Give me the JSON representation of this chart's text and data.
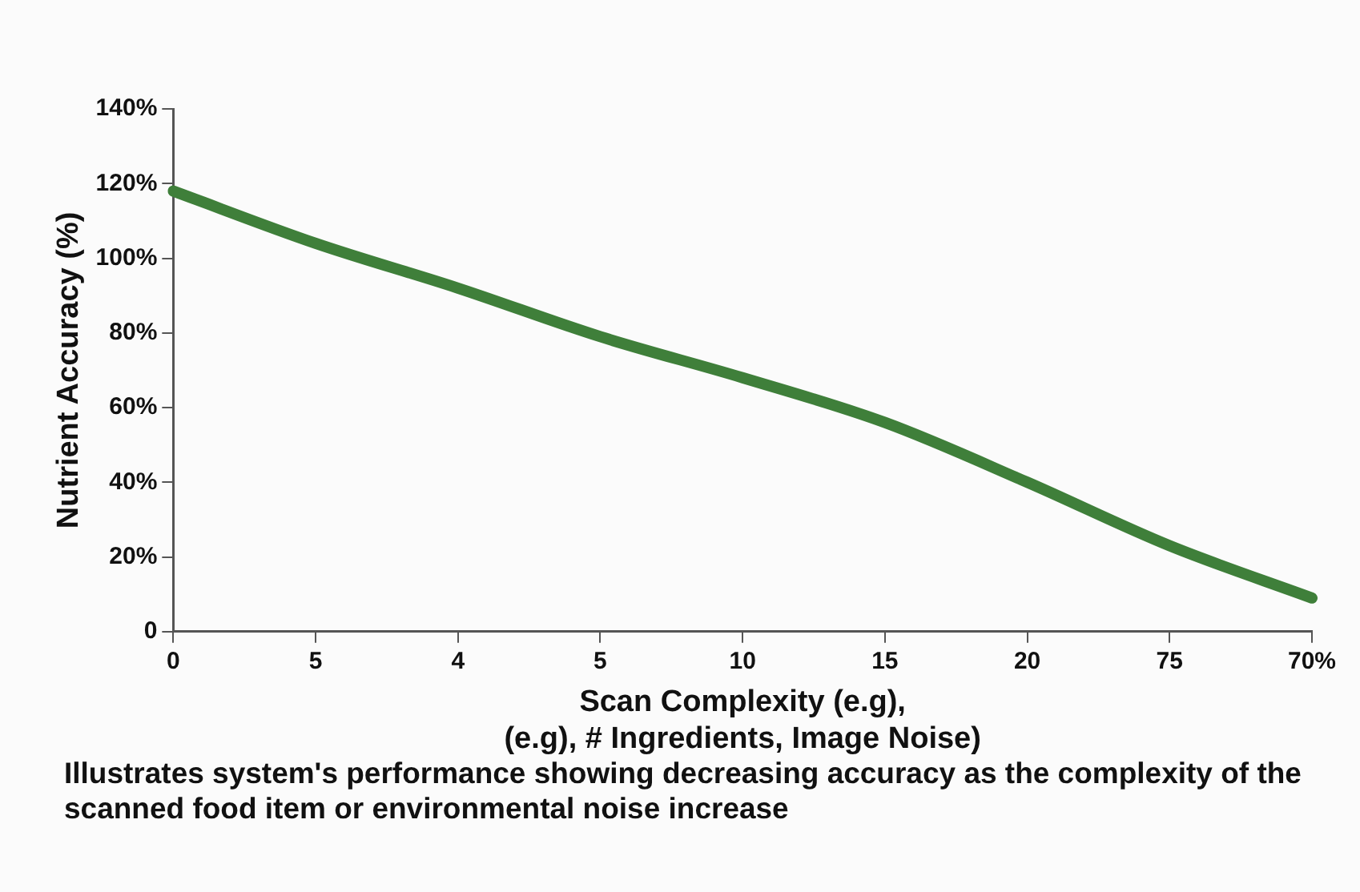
{
  "chart_data": {
    "type": "line",
    "xlabel": "Scan Complexity (e.g),\n(e.g), # Ingredients, Image Noise)",
    "ylabel": "Nutrient Accuracy (%)",
    "categories": [
      "0",
      "5",
      "4",
      "5",
      "10",
      "15",
      "20",
      "75",
      "70%"
    ],
    "series": [
      {
        "color": "#3f7f3a",
        "values": [
          118,
          104,
          92,
          79,
          68,
          56,
          40,
          23,
          9
        ]
      }
    ],
    "ylim": [
      0,
      140
    ],
    "yticks": [
      0,
      {
        "value": 20,
        "label": "20%"
      },
      {
        "value": 40,
        "label": "40%"
      },
      {
        "value": 60,
        "label": "60%"
      },
      {
        "value": 80,
        "label": "80%"
      },
      {
        "value": 100,
        "label": "100%"
      },
      {
        "value": 120,
        "label": "120%"
      },
      {
        "value": 140,
        "label": "140%"
      }
    ],
    "grid": false,
    "legend": false,
    "marker": "none",
    "line_style": "solid",
    "annotations": [
      "Illustrates system's performance showing decreasing accuracy as the complexity of the scanned food item or environmental noise increase"
    ]
  }
}
